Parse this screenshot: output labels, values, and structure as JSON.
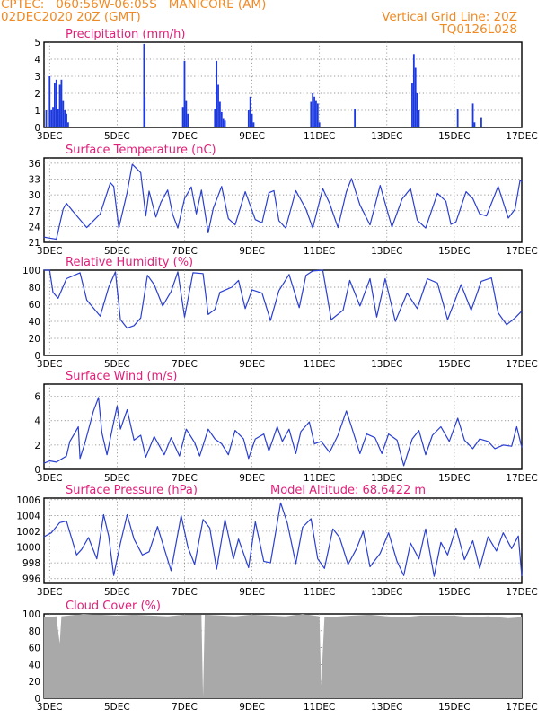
{
  "header": {
    "line1": "CPTEC:   060:56W-06:05S   MANICORE (AM)",
    "line2": "02DEC2020 20Z (GMT)",
    "right1": "Vertical Grid Line: 20Z",
    "right2": "TQ0126L028"
  },
  "colors": {
    "line": "#2a3fd0",
    "bar": "#1c39e0",
    "cloud": "#a9a9a9",
    "title": "#e0207a",
    "header": "#f08a24"
  },
  "x_axis": {
    "tick_labels": [
      "3DEC",
      "5DEC",
      "7DEC",
      "9DEC",
      "11DEC",
      "13DEC",
      "15DEC",
      "17DEC"
    ],
    "range_days": [
      2.833,
      17.0
    ]
  },
  "chart_data": [
    {
      "type": "bar",
      "title": "Precipitation (mm/h)",
      "ylim": [
        0,
        5
      ],
      "yticks": [
        "0",
        "1",
        "2",
        "3",
        "4",
        "5"
      ],
      "points": [
        [
          2.9,
          1.0
        ],
        [
          3.0,
          3.0
        ],
        [
          3.05,
          1.0
        ],
        [
          3.1,
          1.2
        ],
        [
          3.15,
          2.6
        ],
        [
          3.2,
          2.8
        ],
        [
          3.25,
          1.1
        ],
        [
          3.3,
          2.5
        ],
        [
          3.35,
          2.8
        ],
        [
          3.4,
          1.6
        ],
        [
          3.45,
          1.0
        ],
        [
          3.5,
          0.8
        ],
        [
          3.55,
          0.3
        ],
        [
          5.8,
          4.9
        ],
        [
          5.82,
          1.8
        ],
        [
          6.95,
          1.2
        ],
        [
          7.0,
          3.9
        ],
        [
          7.05,
          1.6
        ],
        [
          7.1,
          0.8
        ],
        [
          7.9,
          1.1
        ],
        [
          7.95,
          3.9
        ],
        [
          8.0,
          2.5
        ],
        [
          8.05,
          1.5
        ],
        [
          8.1,
          0.9
        ],
        [
          8.15,
          0.5
        ],
        [
          8.2,
          0.4
        ],
        [
          8.9,
          1.0
        ],
        [
          8.95,
          1.8
        ],
        [
          9.0,
          0.8
        ],
        [
          9.05,
          0.3
        ],
        [
          10.75,
          1.5
        ],
        [
          10.8,
          2.0
        ],
        [
          10.85,
          1.8
        ],
        [
          10.9,
          1.6
        ],
        [
          10.95,
          1.4
        ],
        [
          11.0,
          0.3
        ],
        [
          12.05,
          1.1
        ],
        [
          13.75,
          2.6
        ],
        [
          13.8,
          4.3
        ],
        [
          13.85,
          3.5
        ],
        [
          13.9,
          2.0
        ],
        [
          13.95,
          1.0
        ],
        [
          15.1,
          1.1
        ],
        [
          15.55,
          1.4
        ],
        [
          15.6,
          0.3
        ],
        [
          15.8,
          0.6
        ]
      ]
    },
    {
      "type": "line",
      "title": "Surface Temperature (nC)",
      "ylim": [
        21,
        37
      ],
      "yticks": [
        "21",
        "24",
        "27",
        "30",
        "33",
        "36"
      ],
      "points": [
        [
          2.83,
          22.0
        ],
        [
          3.0,
          21.8
        ],
        [
          3.2,
          21.6
        ],
        [
          3.4,
          27.3
        ],
        [
          3.5,
          28.4
        ],
        [
          3.7,
          26.8
        ],
        [
          4.1,
          23.8
        ],
        [
          4.5,
          26.4
        ],
        [
          4.8,
          32.3
        ],
        [
          4.9,
          31.6
        ],
        [
          5.05,
          23.7
        ],
        [
          5.3,
          30.5
        ],
        [
          5.45,
          35.8
        ],
        [
          5.7,
          34.2
        ],
        [
          5.85,
          26.0
        ],
        [
          5.95,
          30.7
        ],
        [
          6.15,
          25.8
        ],
        [
          6.3,
          28.6
        ],
        [
          6.5,
          30.9
        ],
        [
          6.65,
          26.3
        ],
        [
          6.8,
          23.7
        ],
        [
          7.0,
          29.3
        ],
        [
          7.2,
          31.5
        ],
        [
          7.35,
          26.4
        ],
        [
          7.5,
          30.9
        ],
        [
          7.7,
          22.8
        ],
        [
          7.85,
          27.4
        ],
        [
          8.1,
          31.6
        ],
        [
          8.3,
          25.5
        ],
        [
          8.5,
          24.3
        ],
        [
          8.8,
          30.6
        ],
        [
          9.1,
          25.3
        ],
        [
          9.3,
          24.7
        ],
        [
          9.5,
          30.4
        ],
        [
          9.65,
          30.8
        ],
        [
          9.8,
          25.1
        ],
        [
          10.0,
          23.7
        ],
        [
          10.3,
          30.8
        ],
        [
          10.6,
          27.3
        ],
        [
          10.8,
          23.7
        ],
        [
          11.1,
          31.2
        ],
        [
          11.3,
          28.4
        ],
        [
          11.55,
          23.8
        ],
        [
          11.8,
          30.6
        ],
        [
          11.95,
          33.1
        ],
        [
          12.2,
          28.1
        ],
        [
          12.5,
          24.3
        ],
        [
          12.8,
          31.8
        ],
        [
          13.15,
          23.9
        ],
        [
          13.45,
          29.2
        ],
        [
          13.7,
          31.2
        ],
        [
          13.9,
          25.2
        ],
        [
          14.15,
          23.7
        ],
        [
          14.5,
          30.3
        ],
        [
          14.75,
          28.8
        ],
        [
          14.9,
          24.4
        ],
        [
          15.05,
          24.9
        ],
        [
          15.35,
          30.6
        ],
        [
          15.55,
          29.3
        ],
        [
          15.75,
          26.4
        ],
        [
          15.95,
          26.0
        ],
        [
          16.3,
          31.6
        ],
        [
          16.6,
          25.6
        ],
        [
          16.8,
          27.3
        ],
        [
          16.95,
          32.8
        ],
        [
          17.0,
          32.5
        ]
      ]
    },
    {
      "type": "line",
      "title": "Relative Humidity (%)",
      "ylim": [
        0,
        100
      ],
      "yticks": [
        "0",
        "20",
        "40",
        "60",
        "80",
        "100"
      ],
      "points": [
        [
          2.83,
          100
        ],
        [
          3.0,
          100
        ],
        [
          3.1,
          74
        ],
        [
          3.25,
          67
        ],
        [
          3.5,
          90
        ],
        [
          3.9,
          97
        ],
        [
          4.1,
          65
        ],
        [
          4.5,
          46
        ],
        [
          4.75,
          80
        ],
        [
          4.95,
          98
        ],
        [
          5.1,
          42
        ],
        [
          5.3,
          32
        ],
        [
          5.5,
          35
        ],
        [
          5.7,
          44
        ],
        [
          5.9,
          94
        ],
        [
          6.1,
          83
        ],
        [
          6.35,
          58
        ],
        [
          6.6,
          75
        ],
        [
          6.8,
          98
        ],
        [
          7.0,
          45
        ],
        [
          7.25,
          97
        ],
        [
          7.55,
          96
        ],
        [
          7.7,
          48
        ],
        [
          7.9,
          54
        ],
        [
          8.05,
          74
        ],
        [
          8.4,
          80
        ],
        [
          8.6,
          88
        ],
        [
          8.8,
          55
        ],
        [
          9.0,
          77
        ],
        [
          9.3,
          73
        ],
        [
          9.55,
          41
        ],
        [
          9.8,
          76
        ],
        [
          10.1,
          95
        ],
        [
          10.4,
          56
        ],
        [
          10.6,
          94
        ],
        [
          10.8,
          99
        ],
        [
          11.1,
          100
        ],
        [
          11.35,
          42
        ],
        [
          11.7,
          53
        ],
        [
          11.9,
          88
        ],
        [
          12.2,
          58
        ],
        [
          12.5,
          90
        ],
        [
          12.7,
          45
        ],
        [
          12.95,
          90
        ],
        [
          13.25,
          40
        ],
        [
          13.6,
          73
        ],
        [
          13.9,
          55
        ],
        [
          14.2,
          90
        ],
        [
          14.5,
          85
        ],
        [
          14.8,
          42
        ],
        [
          15.2,
          83
        ],
        [
          15.5,
          53
        ],
        [
          15.8,
          87
        ],
        [
          16.1,
          91
        ],
        [
          16.3,
          50
        ],
        [
          16.55,
          36
        ],
        [
          16.8,
          44
        ],
        [
          17.0,
          52
        ]
      ]
    },
    {
      "type": "line",
      "title": "Surface Wind (m/s)",
      "ylim": [
        0,
        7
      ],
      "yticks": [
        "0",
        "2",
        "4",
        "6"
      ],
      "points": [
        [
          2.83,
          0.5
        ],
        [
          3.0,
          0.7
        ],
        [
          3.2,
          0.6
        ],
        [
          3.5,
          1.1
        ],
        [
          3.6,
          2.3
        ],
        [
          3.75,
          3.0
        ],
        [
          3.85,
          3.5
        ],
        [
          3.9,
          0.9
        ],
        [
          4.05,
          2.2
        ],
        [
          4.3,
          4.8
        ],
        [
          4.45,
          5.9
        ],
        [
          4.55,
          3.0
        ],
        [
          4.7,
          1.2
        ],
        [
          4.9,
          3.9
        ],
        [
          5.0,
          5.2
        ],
        [
          5.1,
          3.3
        ],
        [
          5.3,
          4.9
        ],
        [
          5.5,
          2.4
        ],
        [
          5.7,
          2.8
        ],
        [
          5.85,
          1.0
        ],
        [
          6.1,
          2.7
        ],
        [
          6.4,
          1.2
        ],
        [
          6.6,
          2.6
        ],
        [
          6.85,
          1.1
        ],
        [
          7.05,
          3.3
        ],
        [
          7.3,
          2.2
        ],
        [
          7.45,
          1.1
        ],
        [
          7.7,
          3.3
        ],
        [
          7.9,
          2.5
        ],
        [
          8.1,
          2.1
        ],
        [
          8.3,
          1.2
        ],
        [
          8.5,
          3.2
        ],
        [
          8.75,
          2.5
        ],
        [
          8.9,
          0.9
        ],
        [
          9.1,
          2.5
        ],
        [
          9.35,
          2.9
        ],
        [
          9.5,
          1.5
        ],
        [
          9.75,
          3.5
        ],
        [
          9.9,
          2.3
        ],
        [
          10.1,
          3.3
        ],
        [
          10.3,
          1.3
        ],
        [
          10.45,
          3.1
        ],
        [
          10.7,
          3.9
        ],
        [
          10.85,
          2.1
        ],
        [
          11.05,
          2.3
        ],
        [
          11.3,
          1.4
        ],
        [
          11.55,
          2.8
        ],
        [
          11.8,
          4.8
        ],
        [
          11.95,
          3.5
        ],
        [
          12.2,
          1.3
        ],
        [
          12.4,
          2.9
        ],
        [
          12.65,
          2.6
        ],
        [
          12.85,
          1.3
        ],
        [
          13.05,
          2.9
        ],
        [
          13.3,
          2.4
        ],
        [
          13.5,
          0.3
        ],
        [
          13.75,
          2.5
        ],
        [
          13.95,
          3.2
        ],
        [
          14.15,
          1.2
        ],
        [
          14.35,
          2.8
        ],
        [
          14.6,
          3.5
        ],
        [
          14.85,
          2.3
        ],
        [
          15.1,
          4.2
        ],
        [
          15.3,
          2.4
        ],
        [
          15.55,
          1.7
        ],
        [
          15.75,
          2.5
        ],
        [
          16.0,
          2.3
        ],
        [
          16.2,
          1.7
        ],
        [
          16.45,
          2.0
        ],
        [
          16.7,
          1.9
        ],
        [
          16.85,
          3.5
        ],
        [
          17.0,
          1.8
        ]
      ]
    },
    {
      "type": "line",
      "title": "Surface Pressure (hPa)",
      "annotation": "Model Altitude: 68.6422 m",
      "ylim": [
        995.4,
        1006.2
      ],
      "yticks": [
        "996",
        "998",
        "1000",
        "1002",
        "1004",
        "1006"
      ],
      "points": [
        [
          2.83,
          1001.3
        ],
        [
          3.05,
          1001.8
        ],
        [
          3.3,
          1003.1
        ],
        [
          3.5,
          1003.3
        ],
        [
          3.8,
          999.0
        ],
        [
          3.95,
          999.7
        ],
        [
          4.15,
          1001.2
        ],
        [
          4.4,
          998.5
        ],
        [
          4.6,
          1004.1
        ],
        [
          4.75,
          1001.4
        ],
        [
          4.9,
          996.4
        ],
        [
          5.1,
          1000.5
        ],
        [
          5.3,
          1004.1
        ],
        [
          5.5,
          1001.0
        ],
        [
          5.75,
          999.0
        ],
        [
          5.95,
          999.4
        ],
        [
          6.2,
          1002.6
        ],
        [
          6.4,
          999.8
        ],
        [
          6.6,
          997.0
        ],
        [
          6.9,
          1004.0
        ],
        [
          7.1,
          1000.0
        ],
        [
          7.3,
          997.8
        ],
        [
          7.55,
          1003.5
        ],
        [
          7.75,
          1002.4
        ],
        [
          7.95,
          997.2
        ],
        [
          8.2,
          1003.5
        ],
        [
          8.45,
          998.5
        ],
        [
          8.6,
          1001.0
        ],
        [
          8.9,
          997.4
        ],
        [
          9.1,
          1003.2
        ],
        [
          9.35,
          998.2
        ],
        [
          9.55,
          998.0
        ],
        [
          9.85,
          1005.6
        ],
        [
          10.05,
          1003.0
        ],
        [
          10.3,
          997.9
        ],
        [
          10.5,
          1002.5
        ],
        [
          10.75,
          1003.6
        ],
        [
          10.95,
          998.5
        ],
        [
          11.15,
          997.3
        ],
        [
          11.4,
          1002.3
        ],
        [
          11.6,
          1001.2
        ],
        [
          11.85,
          997.8
        ],
        [
          12.1,
          999.8
        ],
        [
          12.3,
          1002.0
        ],
        [
          12.5,
          997.5
        ],
        [
          12.8,
          999.2
        ],
        [
          13.05,
          1001.8
        ],
        [
          13.3,
          998.2
        ],
        [
          13.5,
          996.4
        ],
        [
          13.7,
          1000.5
        ],
        [
          13.95,
          998.5
        ],
        [
          14.15,
          1002.3
        ],
        [
          14.4,
          996.3
        ],
        [
          14.6,
          1000.6
        ],
        [
          14.8,
          999.0
        ],
        [
          15.05,
          1002.4
        ],
        [
          15.3,
          998.4
        ],
        [
          15.55,
          1000.8
        ],
        [
          15.75,
          997.3
        ],
        [
          16.0,
          1001.3
        ],
        [
          16.25,
          999.5
        ],
        [
          16.45,
          1001.8
        ],
        [
          16.7,
          999.8
        ],
        [
          16.9,
          1001.4
        ],
        [
          17.0,
          996.3
        ]
      ]
    },
    {
      "type": "area",
      "title": "Cloud Cover (%)",
      "ylim": [
        0,
        100
      ],
      "yticks": [
        "0",
        "20",
        "40",
        "60",
        "80",
        "100"
      ],
      "points": [
        [
          2.83,
          96
        ],
        [
          3.2,
          97
        ],
        [
          3.3,
          65
        ],
        [
          3.35,
          97
        ],
        [
          4.0,
          100
        ],
        [
          5.0,
          98
        ],
        [
          5.5,
          99
        ],
        [
          6.5,
          97
        ],
        [
          7.0,
          99
        ],
        [
          7.5,
          99
        ],
        [
          7.55,
          2
        ],
        [
          7.6,
          99
        ],
        [
          8.5,
          97
        ],
        [
          9.0,
          99
        ],
        [
          10.0,
          97
        ],
        [
          10.5,
          100
        ],
        [
          11.0,
          97
        ],
        [
          11.05,
          15
        ],
        [
          11.15,
          96
        ],
        [
          12.0,
          98
        ],
        [
          12.5,
          99
        ],
        [
          13.0,
          97
        ],
        [
          13.5,
          96
        ],
        [
          14.0,
          98
        ],
        [
          15.0,
          98
        ],
        [
          15.5,
          96
        ],
        [
          16.0,
          97
        ],
        [
          16.6,
          95
        ],
        [
          17.0,
          96
        ]
      ]
    }
  ]
}
